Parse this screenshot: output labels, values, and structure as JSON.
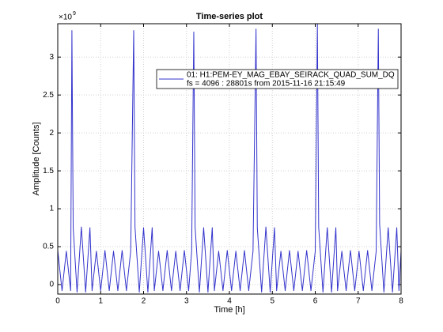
{
  "chart_data": {
    "type": "line",
    "title": "Time-series plot",
    "x_label": "Time [h]",
    "y_label": "Amplitude [Counts]",
    "y_multiplier_base": "×10",
    "y_multiplier_exponent": "9",
    "legend_detail": "fs = 4096 : 28801s from 2015-11-16 21:15:49",
    "legend_position": "upper right",
    "grid": true,
    "xlim": [
      0,
      8
    ],
    "xticks": [
      0,
      1,
      2,
      3,
      4,
      5,
      6,
      7,
      8
    ],
    "ylim": [
      -0.125,
      3.44
    ],
    "yticks": [
      0,
      0.5,
      1,
      1.5,
      2,
      2.5,
      3
    ],
    "series": [
      {
        "name": "01: H1:PEM-EY_MAG_EBAY_SEIRACK_QUAD_SUM_DQ",
        "color": "#3333cc",
        "x": [
          0,
          0.1,
          0.2,
          0.3,
          0.33,
          0.36,
          0.45,
          0.55,
          0.65,
          0.75,
          0.8,
          0.9,
          1.0,
          1.1,
          1.2,
          1.3,
          1.4,
          1.5,
          1.6,
          1.7,
          1.77,
          1.8,
          1.9,
          2.0,
          2.1,
          2.2,
          2.25,
          2.35,
          2.45,
          2.55,
          2.65,
          2.75,
          2.85,
          2.95,
          3.05,
          3.12,
          3.17,
          3.2,
          3.3,
          3.4,
          3.5,
          3.6,
          3.65,
          3.75,
          3.85,
          3.95,
          4.05,
          4.15,
          4.25,
          4.35,
          4.45,
          4.55,
          4.62,
          4.65,
          4.75,
          4.85,
          4.95,
          5.05,
          5.1,
          5.2,
          5.3,
          5.4,
          5.5,
          5.6,
          5.7,
          5.8,
          5.9,
          6.0,
          6.05,
          6.08,
          6.18,
          6.28,
          6.38,
          6.48,
          6.52,
          6.62,
          6.72,
          6.82,
          6.92,
          7.02,
          7.12,
          7.22,
          7.32,
          7.42,
          7.47,
          7.5,
          7.6,
          7.7,
          7.8,
          7.9,
          7.95,
          8.0
        ],
        "values": [
          0.45,
          -0.08,
          0.44,
          -0.08,
          3.35,
          0.75,
          -0.1,
          0.76,
          -0.1,
          0.75,
          -0.08,
          0.44,
          -0.08,
          0.45,
          -0.08,
          0.44,
          -0.08,
          0.45,
          -0.08,
          0.44,
          3.35,
          0.76,
          -0.1,
          0.75,
          -0.1,
          0.75,
          -0.08,
          0.44,
          -0.08,
          0.45,
          -0.08,
          0.44,
          -0.08,
          0.45,
          -0.08,
          0.44,
          3.33,
          0.76,
          -0.1,
          0.75,
          -0.1,
          0.75,
          -0.08,
          0.44,
          -0.08,
          0.45,
          -0.08,
          0.44,
          -0.08,
          0.45,
          -0.08,
          0.44,
          3.37,
          0.75,
          -0.1,
          0.76,
          -0.1,
          0.75,
          -0.08,
          0.44,
          -0.08,
          0.45,
          -0.08,
          0.44,
          -0.08,
          0.45,
          -0.08,
          0.44,
          3.44,
          0.76,
          -0.1,
          0.75,
          -0.1,
          0.75,
          -0.08,
          0.44,
          -0.08,
          0.45,
          -0.08,
          0.44,
          -0.08,
          0.45,
          -0.08,
          0.44,
          3.37,
          0.8,
          -0.1,
          0.75,
          -0.1,
          0.75,
          -0.08,
          0.44
        ]
      }
    ]
  }
}
